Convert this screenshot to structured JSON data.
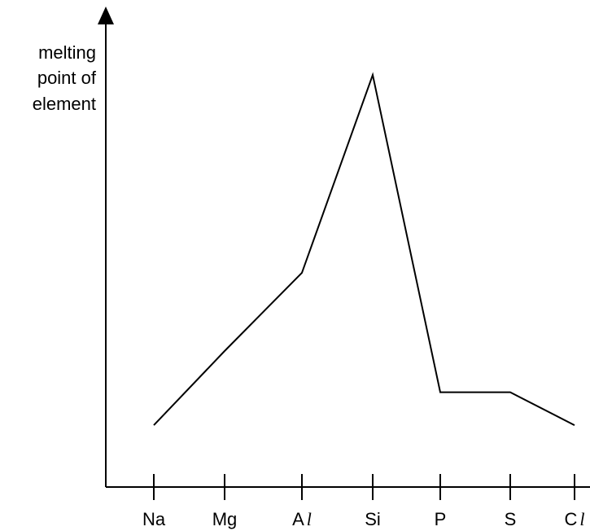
{
  "chart_data": {
    "type": "line",
    "title": "",
    "xlabel": "",
    "ylabel": "melting point of element",
    "ylabel_lines": [
      "melting",
      "point of",
      "element"
    ],
    "categories": [
      "Na",
      "Mg",
      "Al",
      "Si",
      "P",
      "S",
      "Cl"
    ],
    "category_labels": [
      {
        "main": "Na",
        "ell": ""
      },
      {
        "main": "Mg",
        "ell": ""
      },
      {
        "main": "A",
        "ell": "l"
      },
      {
        "main": "Si",
        "ell": ""
      },
      {
        "main": "P",
        "ell": ""
      },
      {
        "main": "S",
        "ell": ""
      },
      {
        "main": "C",
        "ell": "l"
      }
    ],
    "values": [
      15,
      33,
      52,
      100,
      23,
      23,
      15
    ],
    "ylim": [
      0,
      100
    ],
    "y_ticks_shown": false,
    "grid": false,
    "legend": "none",
    "line_color": "#000000",
    "axis_color": "#000000"
  }
}
